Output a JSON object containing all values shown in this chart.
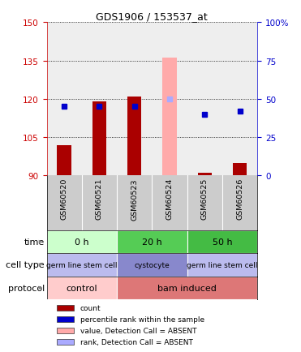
{
  "title": "GDS1906 / 153537_at",
  "samples": [
    "GSM60520",
    "GSM60521",
    "GSM60523",
    "GSM60524",
    "GSM60525",
    "GSM60526"
  ],
  "ylim_left": [
    90,
    150
  ],
  "ylim_right": [
    0,
    100
  ],
  "yticks_left": [
    90,
    105,
    120,
    135,
    150
  ],
  "yticks_right": [
    0,
    25,
    50,
    75,
    100
  ],
  "count_values": [
    102,
    119,
    121,
    null,
    91,
    95
  ],
  "rank_values": [
    45,
    45,
    45,
    null,
    40,
    42
  ],
  "absent_count_value": 136,
  "absent_rank_value": 50,
  "absent_index": 3,
  "bar_color": "#aa0000",
  "rank_color": "#0000cc",
  "absent_bar_color": "#ffaaaa",
  "absent_rank_color": "#aaaaff",
  "left_axis_color": "#cc0000",
  "right_axis_color": "#0000cc",
  "plot_bg_color": "#eeeeee",
  "sample_bg_color": "#cccccc",
  "time_groups": [
    {
      "label": "0 h",
      "start": 0,
      "end": 2,
      "color": "#ccffcc"
    },
    {
      "label": "20 h",
      "start": 2,
      "end": 4,
      "color": "#55cc55"
    },
    {
      "label": "50 h",
      "start": 4,
      "end": 6,
      "color": "#44bb44"
    }
  ],
  "celltype_groups": [
    {
      "label": "germ line stem cell",
      "start": 0,
      "end": 2,
      "color": "#bbbbee"
    },
    {
      "label": "cystocyte",
      "start": 2,
      "end": 4,
      "color": "#8888cc"
    },
    {
      "label": "germ line stem cell",
      "start": 4,
      "end": 6,
      "color": "#bbbbee"
    }
  ],
  "protocol_groups": [
    {
      "label": "control",
      "start": 0,
      "end": 2,
      "color": "#ffcccc"
    },
    {
      "label": "bam induced",
      "start": 2,
      "end": 6,
      "color": "#dd7777"
    }
  ],
  "row_labels": [
    "time",
    "cell type",
    "protocol"
  ],
  "legend_items": [
    {
      "color": "#aa0000",
      "label": "count"
    },
    {
      "color": "#0000cc",
      "label": "percentile rank within the sample"
    },
    {
      "color": "#ffaaaa",
      "label": "value, Detection Call = ABSENT"
    },
    {
      "color": "#aaaaff",
      "label": "rank, Detection Call = ABSENT"
    }
  ],
  "baseline": 90
}
